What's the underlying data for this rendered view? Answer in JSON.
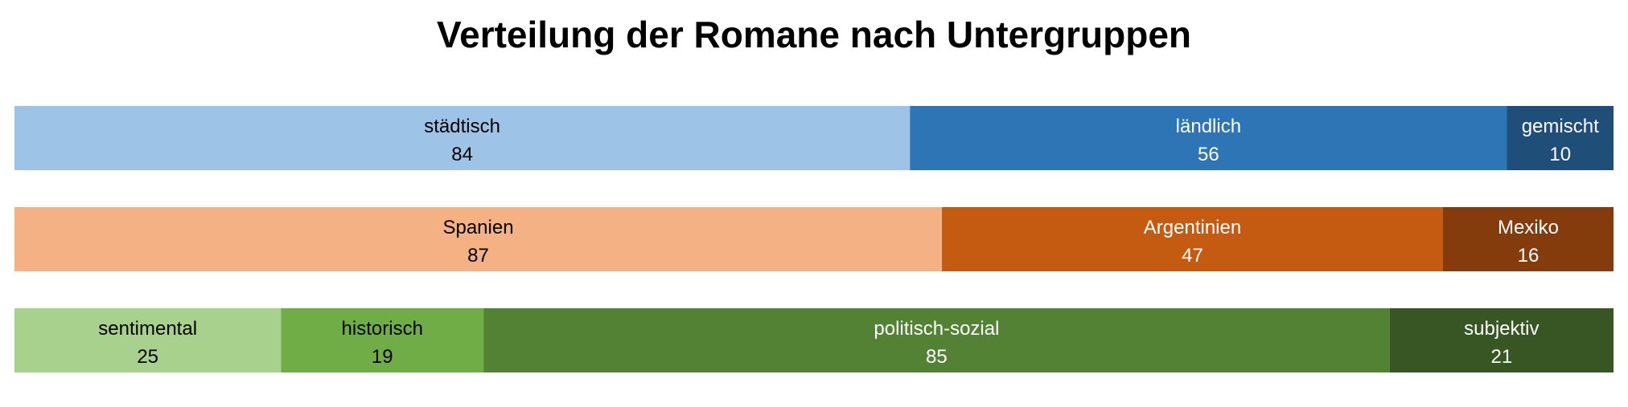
{
  "chart_data": {
    "type": "bar",
    "orientation": "horizontal-stacked-100",
    "title": "Verteilung der Romane nach Untergruppen",
    "xlabel": "",
    "ylabel": "",
    "grid": false,
    "legend": "none",
    "rows": [
      {
        "segments": [
          {
            "label": "städtisch",
            "value": 84,
            "color": "#9dc3e6",
            "text_color": "#000000"
          },
          {
            "label": "ländlich",
            "value": 56,
            "color": "#2e75b6",
            "text_color": "#ffffff"
          },
          {
            "label": "gemischt",
            "value": 10,
            "color": "#1f4e79",
            "text_color": "#ffffff"
          }
        ]
      },
      {
        "segments": [
          {
            "label": "Spanien",
            "value": 87,
            "color": "#f4b183",
            "text_color": "#000000"
          },
          {
            "label": "Argentinien",
            "value": 47,
            "color": "#c55a11",
            "text_color": "#ffffff"
          },
          {
            "label": "Mexiko",
            "value": 16,
            "color": "#843c0c",
            "text_color": "#ffffff"
          }
        ]
      },
      {
        "segments": [
          {
            "label": "sentimental",
            "value": 25,
            "color": "#a9d18e",
            "text_color": "#000000"
          },
          {
            "label": "historisch",
            "value": 19,
            "color": "#70ad47",
            "text_color": "#000000"
          },
          {
            "label": "politisch-sozial",
            "value": 85,
            "color": "#548235",
            "text_color": "#ffffff"
          },
          {
            "label": "subjektiv",
            "value": 21,
            "color": "#375623",
            "text_color": "#ffffff"
          }
        ]
      }
    ]
  }
}
